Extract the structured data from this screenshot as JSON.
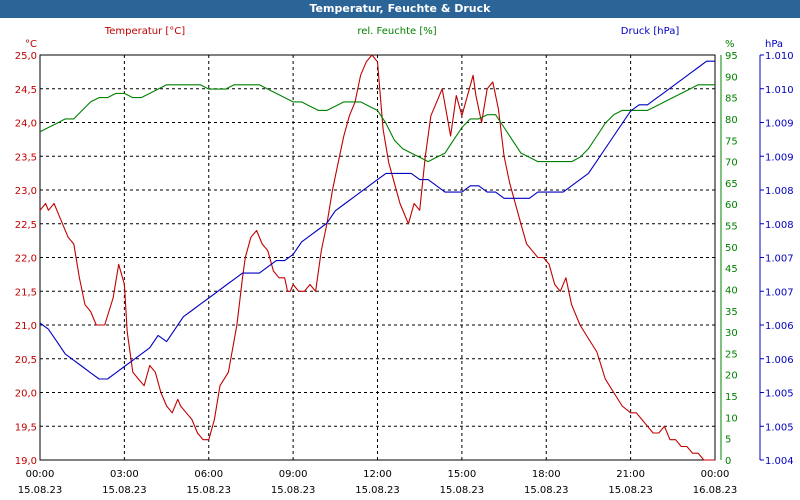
{
  "window": {
    "title": "Temperatur, Feuchte & Druck"
  },
  "colors": {
    "temperature": "#c00000",
    "humidity": "#008000",
    "pressure": "#0000c0",
    "titlebar": "#2b6496"
  },
  "chart_data": {
    "type": "line",
    "title": "Temperatur, Feuchte & Druck",
    "grid": true,
    "x_ticks": [
      {
        "time": "00:00",
        "date": "15.08.23"
      },
      {
        "time": "03:00",
        "date": "15.08.23"
      },
      {
        "time": "06:00",
        "date": "15.08.23"
      },
      {
        "time": "09:00",
        "date": "15.08.23"
      },
      {
        "time": "12:00",
        "date": "15.08.23"
      },
      {
        "time": "15:00",
        "date": "15.08.23"
      },
      {
        "time": "18:00",
        "date": "15.08.23"
      },
      {
        "time": "21:00",
        "date": "15.08.23"
      },
      {
        "time": "00:00",
        "date": "16.08.23"
      }
    ],
    "axes": {
      "temperature": {
        "label": "Temperatur [°C]",
        "unit": "°C",
        "range": [
          19.0,
          25.0
        ],
        "ticks": [
          "25,0",
          "24,5",
          "24,0",
          "23,5",
          "23,0",
          "22,5",
          "22,0",
          "21,5",
          "21,0",
          "20,5",
          "20,0",
          "19,5",
          "19,0"
        ]
      },
      "humidity": {
        "label": "rel. Feuchte [%]",
        "unit": "%",
        "range": [
          0,
          95
        ],
        "ticks": [
          "95",
          "90",
          "85",
          "80",
          "75",
          "70",
          "65",
          "60",
          "55",
          "50",
          "45",
          "40",
          "35",
          "30",
          "25",
          "20",
          "15",
          "10",
          "5",
          "0"
        ]
      },
      "pressure": {
        "label": "Druck [hPa]",
        "unit": "hPa",
        "range": [
          1.004,
          1.0105
        ],
        "ticks": [
          "1.010",
          "1.010",
          "1.009",
          "1.009",
          "1.008",
          "1.008",
          "1.007",
          "1.007",
          "1.006",
          "1.006",
          "1.005",
          "1.005",
          "1.004"
        ]
      }
    },
    "series": [
      {
        "name": "Temperatur [°C]",
        "axis": "temperature",
        "x": [
          0,
          0.2,
          0.3,
          0.5,
          0.6,
          0.8,
          1.0,
          1.2,
          1.4,
          1.6,
          1.8,
          2.0,
          2.3,
          2.6,
          2.8,
          3.0,
          3.1,
          3.3,
          3.5,
          3.7,
          3.9,
          4.1,
          4.3,
          4.5,
          4.7,
          4.9,
          5.0,
          5.2,
          5.4,
          5.6,
          5.8,
          6.0,
          6.2,
          6.4,
          6.7,
          7.0,
          7.2,
          7.3,
          7.5,
          7.7,
          7.9,
          8.1,
          8.3,
          8.5,
          8.7,
          8.8,
          8.9,
          9.0,
          9.2,
          9.4,
          9.6,
          9.8,
          10.0,
          10.2,
          10.4,
          10.6,
          10.8,
          11.0,
          11.2,
          11.4,
          11.6,
          11.8,
          12.0,
          12.2,
          12.4,
          12.6,
          12.8,
          13.0,
          13.1,
          13.3,
          13.5,
          13.7,
          13.9,
          14.1,
          14.3,
          14.6,
          14.8,
          15.0,
          15.2,
          15.4,
          15.5,
          15.7,
          15.9,
          16.1,
          16.3,
          16.5,
          16.7,
          16.9,
          17.1,
          17.3,
          17.5,
          17.7,
          17.9,
          18.1,
          18.3,
          18.5,
          18.7,
          18.9,
          19.2,
          19.5,
          19.8,
          20.1,
          20.4,
          20.7,
          21.0,
          21.2,
          21.4,
          21.6,
          21.8,
          22.0,
          22.2,
          22.4,
          22.6,
          22.8,
          23.0,
          23.2,
          23.4,
          23.6,
          23.8,
          24.0
        ],
        "values": [
          22.7,
          22.8,
          22.7,
          22.8,
          22.7,
          22.5,
          22.3,
          22.2,
          21.7,
          21.3,
          21.2,
          21.0,
          21.0,
          21.4,
          21.9,
          21.6,
          20.9,
          20.3,
          20.2,
          20.1,
          20.4,
          20.3,
          20.0,
          19.8,
          19.7,
          19.9,
          19.8,
          19.7,
          19.6,
          19.4,
          19.3,
          19.3,
          19.6,
          20.1,
          20.3,
          21.0,
          21.7,
          22.0,
          22.3,
          22.4,
          22.2,
          22.1,
          21.8,
          21.7,
          21.7,
          21.5,
          21.5,
          21.6,
          21.5,
          21.5,
          21.6,
          21.5,
          22.1,
          22.5,
          23.0,
          23.4,
          23.8,
          24.1,
          24.3,
          24.7,
          24.9,
          25.0,
          24.9,
          23.9,
          23.4,
          23.1,
          22.8,
          22.6,
          22.5,
          22.8,
          22.7,
          23.5,
          24.1,
          24.3,
          24.5,
          23.8,
          24.4,
          24.1,
          24.4,
          24.7,
          24.4,
          24.0,
          24.5,
          24.6,
          24.2,
          23.5,
          23.1,
          22.8,
          22.5,
          22.2,
          22.1,
          22.0,
          22.0,
          21.9,
          21.6,
          21.5,
          21.7,
          21.3,
          21.0,
          20.8,
          20.6,
          20.2,
          20.0,
          19.8,
          19.7,
          19.7,
          19.6,
          19.5,
          19.4,
          19.4,
          19.5,
          19.3,
          19.3,
          19.2,
          19.2,
          19.1,
          19.1,
          19.0,
          19.0,
          19.0
        ],
        "color": "#c00000"
      },
      {
        "name": "rel. Feuchte [%]",
        "axis": "humidity",
        "x": [
          0,
          0.3,
          0.6,
          0.9,
          1.2,
          1.5,
          1.8,
          2.1,
          2.4,
          2.7,
          3.0,
          3.3,
          3.6,
          3.9,
          4.2,
          4.5,
          4.8,
          5.1,
          5.4,
          5.7,
          6.0,
          6.3,
          6.6,
          6.9,
          7.2,
          7.5,
          7.8,
          8.1,
          8.4,
          8.7,
          9.0,
          9.3,
          9.6,
          9.9,
          10.2,
          10.5,
          10.8,
          11.1,
          11.4,
          11.7,
          12.0,
          12.3,
          12.6,
          12.9,
          13.2,
          13.5,
          13.8,
          14.1,
          14.4,
          14.7,
          15.0,
          15.3,
          15.6,
          15.9,
          16.2,
          16.5,
          16.8,
          17.1,
          17.4,
          17.7,
          18.0,
          18.3,
          18.6,
          18.9,
          19.2,
          19.5,
          19.8,
          20.1,
          20.4,
          20.7,
          21.0,
          21.3,
          21.6,
          21.9,
          22.2,
          22.5,
          22.8,
          23.1,
          23.4,
          23.7,
          24.0
        ],
        "values": [
          77,
          78,
          79,
          80,
          80,
          82,
          84,
          85,
          85,
          86,
          86,
          85,
          85,
          86,
          87,
          88,
          88,
          88,
          88,
          88,
          87,
          87,
          87,
          88,
          88,
          88,
          88,
          87,
          86,
          85,
          84,
          84,
          83,
          82,
          82,
          83,
          84,
          84,
          84,
          83,
          82,
          79,
          75,
          73,
          72,
          71,
          70,
          71,
          72,
          75,
          78,
          80,
          80,
          81,
          81,
          78,
          75,
          72,
          71,
          70,
          70,
          70,
          70,
          70,
          71,
          73,
          76,
          79,
          81,
          82,
          82,
          82,
          82,
          83,
          84,
          85,
          86,
          87,
          88,
          88,
          88
        ],
        "color": "#008000"
      },
      {
        "name": "Druck [hPa]",
        "axis": "pressure",
        "x": [
          0,
          0.3,
          0.6,
          0.9,
          1.2,
          1.5,
          1.8,
          2.1,
          2.4,
          2.7,
          3.0,
          3.3,
          3.6,
          3.9,
          4.2,
          4.5,
          4.8,
          5.1,
          5.4,
          5.7,
          6.0,
          6.3,
          6.6,
          6.9,
          7.2,
          7.5,
          7.8,
          8.1,
          8.4,
          8.7,
          9.0,
          9.3,
          9.6,
          9.9,
          10.2,
          10.5,
          10.8,
          11.1,
          11.4,
          11.7,
          12.0,
          12.3,
          12.6,
          12.9,
          13.2,
          13.5,
          13.8,
          14.1,
          14.4,
          14.7,
          15.0,
          15.3,
          15.6,
          15.9,
          16.2,
          16.5,
          16.8,
          17.1,
          17.4,
          17.7,
          18.0,
          18.3,
          18.6,
          18.9,
          19.2,
          19.5,
          19.8,
          20.1,
          20.4,
          20.7,
          21.0,
          21.3,
          21.6,
          21.9,
          22.2,
          22.5,
          22.8,
          23.1,
          23.4,
          23.7,
          24.0
        ],
        "values": [
          1.0062,
          1.0061,
          1.0059,
          1.0057,
          1.0056,
          1.0055,
          1.0054,
          1.0053,
          1.0053,
          1.0054,
          1.0055,
          1.0056,
          1.0057,
          1.0058,
          1.006,
          1.0059,
          1.0061,
          1.0063,
          1.0064,
          1.0065,
          1.0066,
          1.0067,
          1.0068,
          1.0069,
          1.007,
          1.007,
          1.007,
          1.0071,
          1.0072,
          1.0072,
          1.0073,
          1.0075,
          1.0076,
          1.0077,
          1.0078,
          1.008,
          1.0081,
          1.0082,
          1.0083,
          1.0084,
          1.0085,
          1.0086,
          1.0086,
          1.0086,
          1.0086,
          1.0085,
          1.0085,
          1.0084,
          1.0083,
          1.0083,
          1.0083,
          1.0084,
          1.0084,
          1.0083,
          1.0083,
          1.0082,
          1.0082,
          1.0082,
          1.0082,
          1.0083,
          1.0083,
          1.0083,
          1.0083,
          1.0084,
          1.0085,
          1.0086,
          1.0088,
          1.009,
          1.0092,
          1.0094,
          1.0096,
          1.0097,
          1.0097,
          1.0098,
          1.0099,
          1.01,
          1.0101,
          1.0102,
          1.0103,
          1.0104,
          1.0104
        ],
        "color": "#0000c0"
      }
    ]
  }
}
